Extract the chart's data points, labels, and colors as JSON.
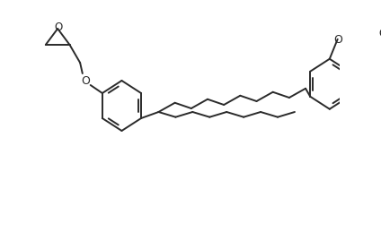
{
  "bg_color": "#ffffff",
  "line_color": "#2a2a2a",
  "line_width": 1.4,
  "figsize": [
    4.24,
    2.59
  ],
  "dpi": 100,
  "xlim": [
    0,
    424
  ],
  "ylim": [
    0,
    259
  ]
}
